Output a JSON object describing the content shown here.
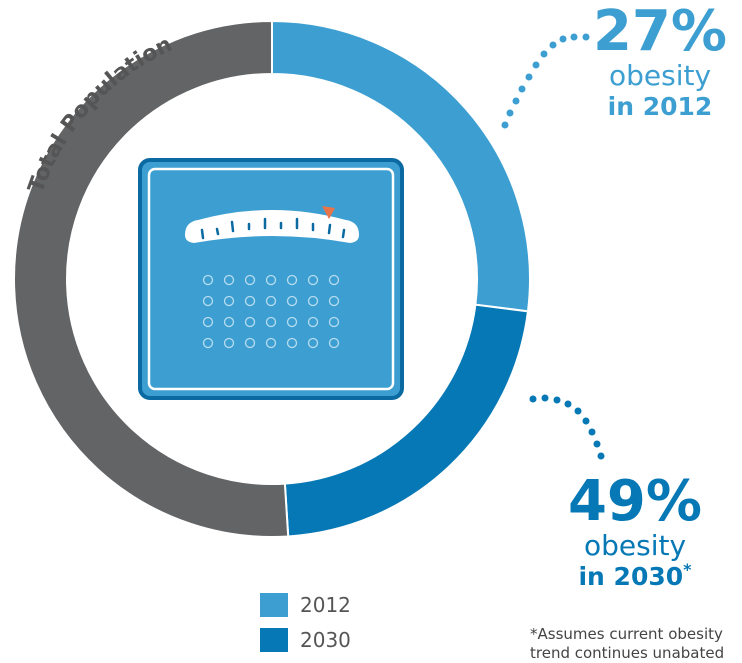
{
  "chart_data": {
    "type": "pie",
    "style": "donut",
    "title": "",
    "ring_label": "Total Population",
    "slices": [
      {
        "name": "2012",
        "value": 27,
        "color": "#3d9fd1"
      },
      {
        "name": "2030",
        "value": 22,
        "color": "#0578b5"
      },
      {
        "name": "",
        "value": 51,
        "color": "#636466"
      }
    ]
  },
  "callouts": {
    "c2012": {
      "pct": "27%",
      "line1": "obesity",
      "line2": "in 2012"
    },
    "c2030": {
      "pct": "49%",
      "line1": "obesity",
      "line2": "in 2030",
      "marker": "*"
    }
  },
  "legend": [
    {
      "label": "2012",
      "color": "#3d9fd1"
    },
    {
      "label": "2030",
      "color": "#0578b5"
    }
  ],
  "footnote": "*Assumes current obesity trend continues unabated",
  "center_icon": "bathroom-scale-icon"
}
